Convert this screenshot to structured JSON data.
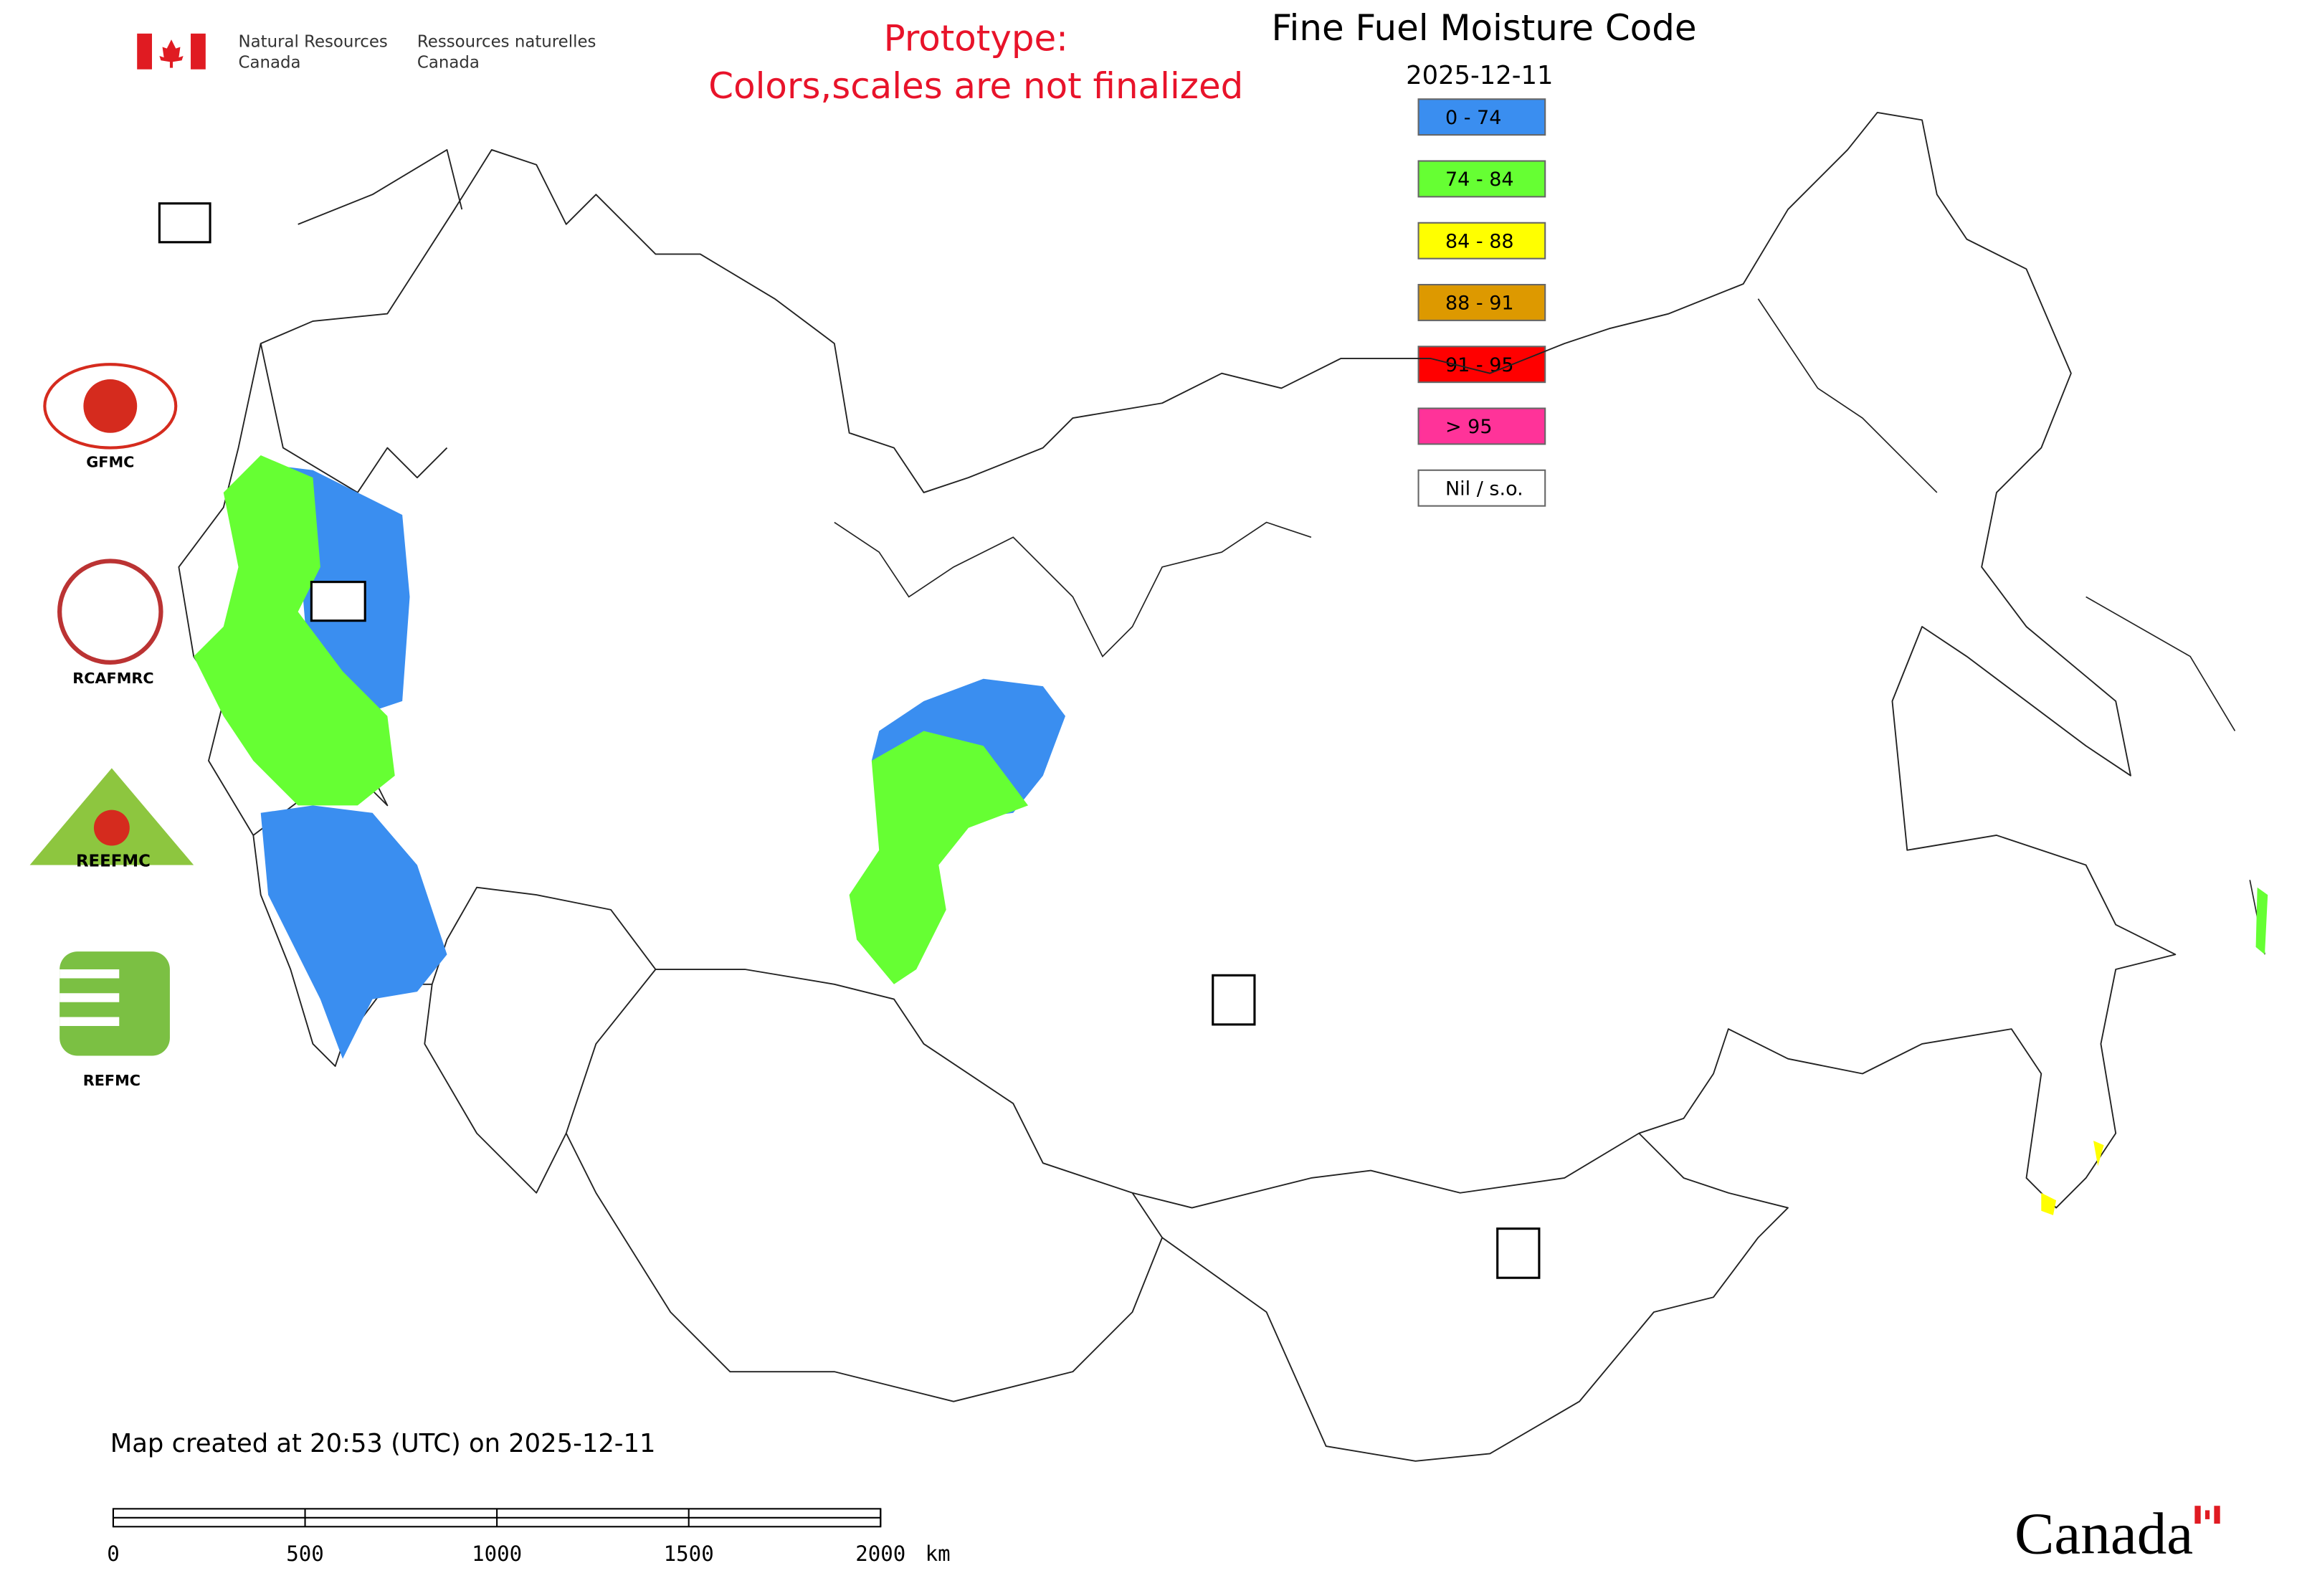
{
  "header": {
    "agency_en": "Natural Resources\nCanada",
    "agency_fr": "Ressources naturelles\nCanada",
    "notice_line1": "Prototype:",
    "notice_line2": "Colors,scales are not finalized"
  },
  "map": {
    "title": "Fine Fuel Moisture Code",
    "date": "2025-12-11",
    "legend": [
      {
        "label": "0 - 74",
        "color": "#3a8ef0"
      },
      {
        "label": "74 - 84",
        "color": "#66ff33"
      },
      {
        "label": "84 - 88",
        "color": "#ffff00"
      },
      {
        "label": "88 - 91",
        "color": "#dd9900"
      },
      {
        "label": "91 - 95",
        "color": "#ff0000"
      },
      {
        "label": "> 95",
        "color": "#ff3399"
      },
      {
        "label": "Nil / s.o.",
        "color": "#ffffff"
      }
    ],
    "created": "Map created at 20:53 (UTC) on 2025-12-11",
    "scale_bar": {
      "ticks": [
        0,
        500,
        1000,
        1500,
        2000
      ],
      "unit": "km"
    }
  },
  "logos": [
    "GFMC",
    "RCAFMRC",
    "REEFMC",
    "REFMC"
  ],
  "footer": {
    "wordmark": "Canada"
  }
}
